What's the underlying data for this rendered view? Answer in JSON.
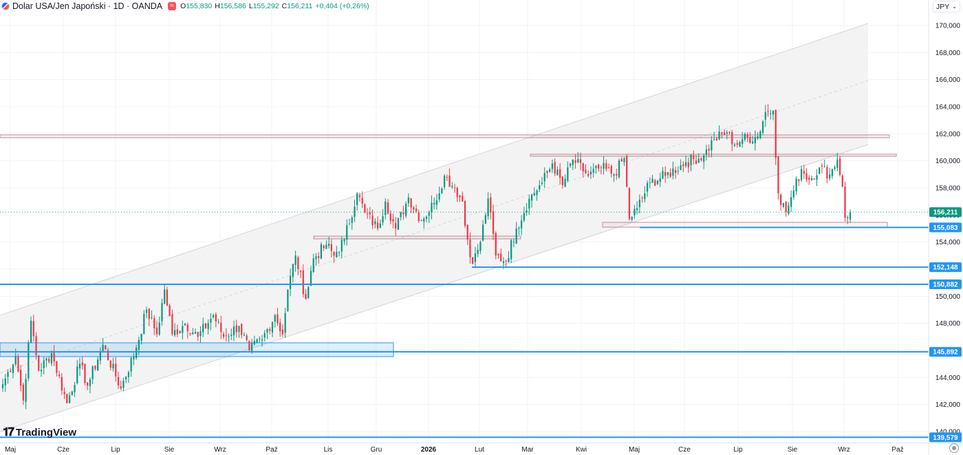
{
  "header": {
    "symbol": "Dolar USA/Jen Japoński · 1D · OANDA",
    "open_label": "O",
    "open": "155,830",
    "high_label": "H",
    "high": "156,586",
    "low_label": "L",
    "low": "155,292",
    "close_label": "C",
    "close": "156,211",
    "change": "+0,404 (+0,26%)",
    "up_color": "#089981",
    "down_color": "#f23645"
  },
  "currency_button": {
    "label": "JPY",
    "icon": "chevron-down-icon"
  },
  "logo": {
    "text": "TradingView",
    "icon": "tradingview-logo-icon"
  },
  "chart_data": {
    "type": "line",
    "style": "candlestick",
    "ylim": [
      139.5,
      171.5
    ],
    "y_ticks": [
      {
        "v": 140,
        "label": "140,000"
      },
      {
        "v": 142,
        "label": "142,000"
      },
      {
        "v": 144,
        "label": "144,000"
      },
      {
        "v": 146,
        "label": "146,000"
      },
      {
        "v": 148,
        "label": "148,000"
      },
      {
        "v": 150,
        "label": "150,000"
      },
      {
        "v": 152,
        "label": "152,000"
      },
      {
        "v": 154,
        "label": "154,000"
      },
      {
        "v": 156,
        "label": "156,000"
      },
      {
        "v": 158,
        "label": "158,000"
      },
      {
        "v": 160,
        "label": "160,000"
      },
      {
        "v": 162,
        "label": "162,000"
      },
      {
        "v": 164,
        "label": "164,000"
      },
      {
        "v": 166,
        "label": "166,000"
      },
      {
        "v": 168,
        "label": "168,000"
      },
      {
        "v": 170,
        "label": "170,000"
      }
    ],
    "x_ticks": [
      "Maj",
      "Cze",
      "Lip",
      "Sie",
      "Wrz",
      "Paź",
      "Lis",
      "Gru",
      "2026",
      "Lut",
      "Mar",
      "Kwi",
      "Maj",
      "Cze",
      "Lip",
      "Sie",
      "Wrz",
      "Paź"
    ],
    "x_tick_bold": [
      false,
      false,
      false,
      false,
      false,
      false,
      false,
      false,
      true,
      false,
      false,
      false,
      false,
      false,
      false,
      false,
      false,
      false
    ],
    "price_tags": [
      {
        "v": 156.211,
        "label": "156,211",
        "color": "#089981"
      },
      {
        "v": 155.083,
        "label": "155,083",
        "color": "#2196f3"
      },
      {
        "v": 152.148,
        "label": "152,148",
        "color": "#2196f3"
      },
      {
        "v": 150.882,
        "label": "150,882",
        "color": "#2196f3"
      },
      {
        "v": 145.892,
        "label": "145,892",
        "color": "#2196f3"
      },
      {
        "v": 139.579,
        "label": "139,579",
        "color": "#2196f3"
      }
    ],
    "anchors": [
      {
        "t": 0,
        "v": 143.5
      },
      {
        "t": 5,
        "v": 145.6
      },
      {
        "t": 8,
        "v": 142.3
      },
      {
        "t": 11,
        "v": 148.2
      },
      {
        "t": 14,
        "v": 144.5
      },
      {
        "t": 19,
        "v": 145.8
      },
      {
        "t": 25,
        "v": 142.1
      },
      {
        "t": 30,
        "v": 145.0
      },
      {
        "t": 33,
        "v": 143.4
      },
      {
        "t": 39,
        "v": 146.4
      },
      {
        "t": 46,
        "v": 143.2
      },
      {
        "t": 52,
        "v": 146.2
      },
      {
        "t": 56,
        "v": 149.0
      },
      {
        "t": 60,
        "v": 147.2
      },
      {
        "t": 63,
        "v": 150.5
      },
      {
        "t": 66,
        "v": 147.2
      },
      {
        "t": 71,
        "v": 148.0
      },
      {
        "t": 76,
        "v": 147.0
      },
      {
        "t": 82,
        "v": 148.6
      },
      {
        "t": 86,
        "v": 147.0
      },
      {
        "t": 92,
        "v": 147.8
      },
      {
        "t": 96,
        "v": 146.0
      },
      {
        "t": 101,
        "v": 146.8
      },
      {
        "t": 106,
        "v": 148.6
      },
      {
        "t": 109,
        "v": 147.2
      },
      {
        "t": 111,
        "v": 150.5
      },
      {
        "t": 114,
        "v": 153.0
      },
      {
        "t": 118,
        "v": 149.8
      },
      {
        "t": 121,
        "v": 152.8
      },
      {
        "t": 126,
        "v": 153.8
      },
      {
        "t": 129,
        "v": 153.0
      },
      {
        "t": 133,
        "v": 154.2
      },
      {
        "t": 138,
        "v": 157.6
      },
      {
        "t": 141,
        "v": 156.2
      },
      {
        "t": 146,
        "v": 155.0
      },
      {
        "t": 149,
        "v": 157.0
      },
      {
        "t": 153,
        "v": 155.0
      },
      {
        "t": 158,
        "v": 157.3
      },
      {
        "t": 163,
        "v": 155.6
      },
      {
        "t": 168,
        "v": 156.9
      },
      {
        "t": 172,
        "v": 158.9
      },
      {
        "t": 176,
        "v": 158.0
      },
      {
        "t": 179,
        "v": 157.0
      },
      {
        "t": 180,
        "v": 155.2
      },
      {
        "t": 183,
        "v": 152.4
      },
      {
        "t": 186,
        "v": 154.0
      },
      {
        "t": 189,
        "v": 157.2
      },
      {
        "t": 192,
        "v": 153.0
      },
      {
        "t": 196,
        "v": 152.6
      },
      {
        "t": 200,
        "v": 155.0
      },
      {
        "t": 205,
        "v": 157.2
      },
      {
        "t": 210,
        "v": 158.4
      },
      {
        "t": 214,
        "v": 159.8
      },
      {
        "t": 218,
        "v": 158.2
      },
      {
        "t": 222,
        "v": 160.1
      },
      {
        "t": 228,
        "v": 158.9
      },
      {
        "t": 233,
        "v": 159.5
      },
      {
        "t": 238,
        "v": 159.0
      },
      {
        "t": 242,
        "v": 160.2
      },
      {
        "t": 244,
        "v": 155.7
      },
      {
        "t": 247,
        "v": 156.5
      },
      {
        "t": 252,
        "v": 158.4
      },
      {
        "t": 258,
        "v": 158.9
      },
      {
        "t": 266,
        "v": 159.9
      },
      {
        "t": 273,
        "v": 160.4
      },
      {
        "t": 277,
        "v": 161.6
      },
      {
        "t": 282,
        "v": 162.1
      },
      {
        "t": 285,
        "v": 161.2
      },
      {
        "t": 288,
        "v": 161.6
      },
      {
        "t": 294,
        "v": 161.8
      },
      {
        "t": 297,
        "v": 163.6
      },
      {
        "t": 300,
        "v": 163.7
      },
      {
        "t": 302,
        "v": 157.6
      },
      {
        "t": 305,
        "v": 156.2
      },
      {
        "t": 308,
        "v": 157.8
      },
      {
        "t": 311,
        "v": 159.4
      },
      {
        "t": 314,
        "v": 158.6
      },
      {
        "t": 318,
        "v": 159.5
      },
      {
        "t": 322,
        "v": 159.0
      },
      {
        "t": 325,
        "v": 160.1
      },
      {
        "t": 327,
        "v": 158.1
      },
      {
        "t": 328,
        "v": 155.8
      },
      {
        "t": 330,
        "v": 156.211
      }
    ]
  }
}
